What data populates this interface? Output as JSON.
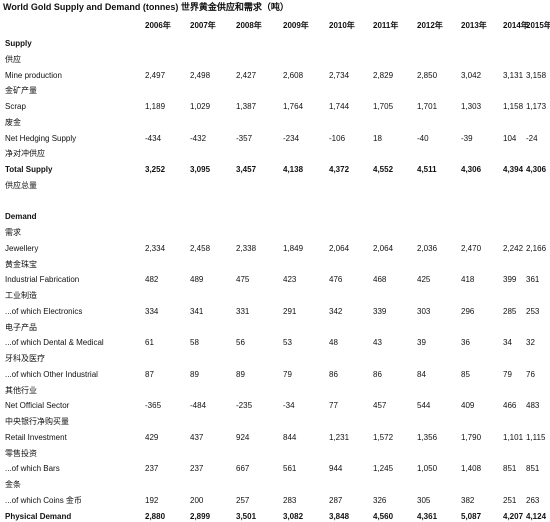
{
  "title": "World Gold Supply and Demand (tonnes) 世界黄金供应和需求（吨）",
  "columns": [
    "2006年",
    "2007年",
    "2008年",
    "2009年",
    "2010年",
    "2011年",
    "2012年",
    "2013年",
    "2014年",
    "2015年"
  ],
  "sections": [
    {
      "title": "Supply",
      "title_zh": "供应",
      "rows": [
        {
          "label": "Mine production",
          "label_zh": "金矿产量",
          "values": [
            "2,497",
            "2,498",
            "2,427",
            "2,608",
            "2,734",
            "2,829",
            "2,850",
            "3,042",
            "3,131",
            "3,158"
          ]
        },
        {
          "label": "Scrap",
          "label_zh": "废金",
          "values": [
            "1,189",
            "1,029",
            "1,387",
            "1,764",
            "1,744",
            "1,705",
            "1,701",
            "1,303",
            "1,158",
            "1,173"
          ]
        },
        {
          "label": "Net Hedging Supply",
          "label_zh": "净对冲供应",
          "values": [
            "-434",
            "-432",
            "-357",
            "-234",
            "-106",
            "18",
            "-40",
            "-39",
            "104",
            "-24"
          ]
        },
        {
          "label": "Total Supply",
          "label_zh": "供应总量",
          "bold": true,
          "values": [
            "3,252",
            "3,095",
            "3,457",
            "4,138",
            "4,372",
            "4,552",
            "4,511",
            "4,306",
            "4,394",
            "4,306"
          ]
        }
      ]
    },
    {
      "title": "Demand",
      "title_zh": "需求",
      "rows": [
        {
          "label": "Jewellery",
          "label_zh": "黄金珠宝",
          "values": [
            "2,334",
            "2,458",
            "2,338",
            "1,849",
            "2,064",
            "2,064",
            "2,036",
            "2,470",
            "2,242",
            "2,166"
          ]
        },
        {
          "label": "Industrial Fabrication",
          "label_zh": "工业制造",
          "values": [
            "482",
            "489",
            "475",
            "423",
            "476",
            "468",
            "425",
            "418",
            "399",
            "361"
          ]
        },
        {
          "label": "...of which Electronics",
          "label_zh": "电子产品",
          "values": [
            "334",
            "341",
            "331",
            "291",
            "342",
            "339",
            "303",
            "296",
            "285",
            "253"
          ]
        },
        {
          "label": "...of which Dental & Medical",
          "label_zh": "牙科及医疗",
          "values": [
            "61",
            "58",
            "56",
            "53",
            "48",
            "43",
            "39",
            "36",
            "34",
            "32"
          ]
        },
        {
          "label": "...of which Other Industrial",
          "label_zh": "其他行业",
          "values": [
            "87",
            "89",
            "89",
            "79",
            "86",
            "86",
            "84",
            "85",
            "79",
            "76"
          ]
        },
        {
          "label": "Net Official Sector",
          "label_zh": "中央银行净购买量",
          "values": [
            "-365",
            "-484",
            "-235",
            "-34",
            "77",
            "457",
            "544",
            "409",
            "466",
            "483"
          ]
        },
        {
          "label": "Retail Investment",
          "label_zh": "零售投资",
          "values": [
            "429",
            "437",
            "924",
            "844",
            "1,231",
            "1,572",
            "1,356",
            "1,790",
            "1,101",
            "1,115"
          ]
        },
        {
          "label": "...of which Bars",
          "label_zh": "金条",
          "values": [
            "237",
            "237",
            "667",
            "561",
            "944",
            "1,245",
            "1,050",
            "1,408",
            "851",
            "851"
          ]
        },
        {
          "label": "...of which Coins 金币",
          "values": [
            "192",
            "200",
            "257",
            "283",
            "287",
            "326",
            "305",
            "382",
            "251",
            "263"
          ]
        },
        {
          "label": "Physical Demand",
          "bold": true,
          "values": [
            "2,880",
            "2,899",
            "3,501",
            "3,082",
            "3,848",
            "4,560",
            "4,361",
            "5,087",
            "4,207",
            "4,124"
          ]
        }
      ]
    }
  ]
}
